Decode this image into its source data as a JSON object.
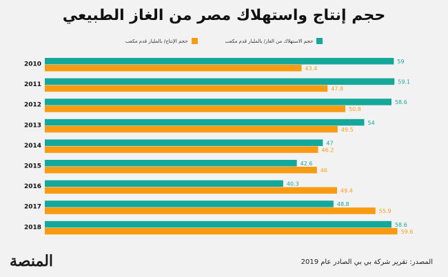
{
  "title": "حجم إنتاج واستهلاك مصر من الغاز الطبيعي",
  "source": "المصدر: تقرير شركة بي بي الصادر عام 2019",
  "logo": "المنصة",
  "colors": {
    "consumption": "#14a89a",
    "production": "#f89b12",
    "background": "#f2f2f2"
  },
  "chart_data": {
    "type": "bar",
    "orientation": "horizontal",
    "categories": [
      "2010",
      "2011",
      "2012",
      "2013",
      "2014",
      "2015",
      "2016",
      "2017",
      "2018"
    ],
    "series": [
      {
        "name": "حجم الاستهلاك من الغاز/ بالمليار قدم مكعب",
        "color": "#14a89a",
        "values": [
          59,
          59.1,
          58.6,
          54,
          47,
          42.6,
          40.3,
          48.8,
          58.6
        ]
      },
      {
        "name": "حجم الإنتاج/ بالمليار قدم مكعب",
        "color": "#f89b12",
        "values": [
          43.4,
          47.8,
          50.8,
          49.5,
          46.2,
          46,
          49.4,
          55.9,
          59.6
        ]
      }
    ],
    "xlim": [
      0,
      60
    ],
    "grid": false,
    "legend_position": "top"
  }
}
